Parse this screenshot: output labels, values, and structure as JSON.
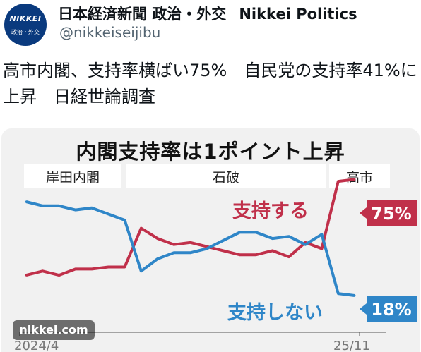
{
  "post": {
    "avatar_line1": "NIKKEI",
    "avatar_line2": "政治・外交",
    "account_name": "日本経済新聞 政治・外交",
    "account_sub": "Nikkei Politics",
    "handle": "@nikkeiseijibu",
    "headline": "高市内閣、支持率横ばい75%　自民党の支持率41%に上昇　日経世論調査"
  },
  "chart_data": {
    "type": "line",
    "title": "内閣支持率は1ポイント上昇",
    "periods": [
      "岸田内閣",
      "石破",
      "高市"
    ],
    "x_start_label": "2024/4",
    "x_end_label": "25/11",
    "ylim": [
      0,
      100
    ],
    "series": [
      {
        "name": "支持する",
        "color": "#c0304a",
        "values": [
          28,
          30,
          28,
          31,
          31,
          32,
          32,
          51,
          46,
          43,
          44,
          42,
          40,
          38,
          38,
          40,
          37,
          44,
          41,
          74,
          75
        ],
        "end_label": "75%"
      },
      {
        "name": "支持しない",
        "color": "#2f86c8",
        "values": [
          64,
          62,
          62,
          60,
          61,
          58,
          55,
          30,
          36,
          39,
          39,
          41,
          45,
          49,
          49,
          46,
          47,
          43,
          48,
          19,
          18
        ],
        "end_label": "18%"
      }
    ]
  },
  "watermark": "nikkei.com",
  "colors": {
    "brand_navy": "#0a3a7e",
    "support": "#c0304a",
    "nonsupport": "#2f86c8"
  }
}
